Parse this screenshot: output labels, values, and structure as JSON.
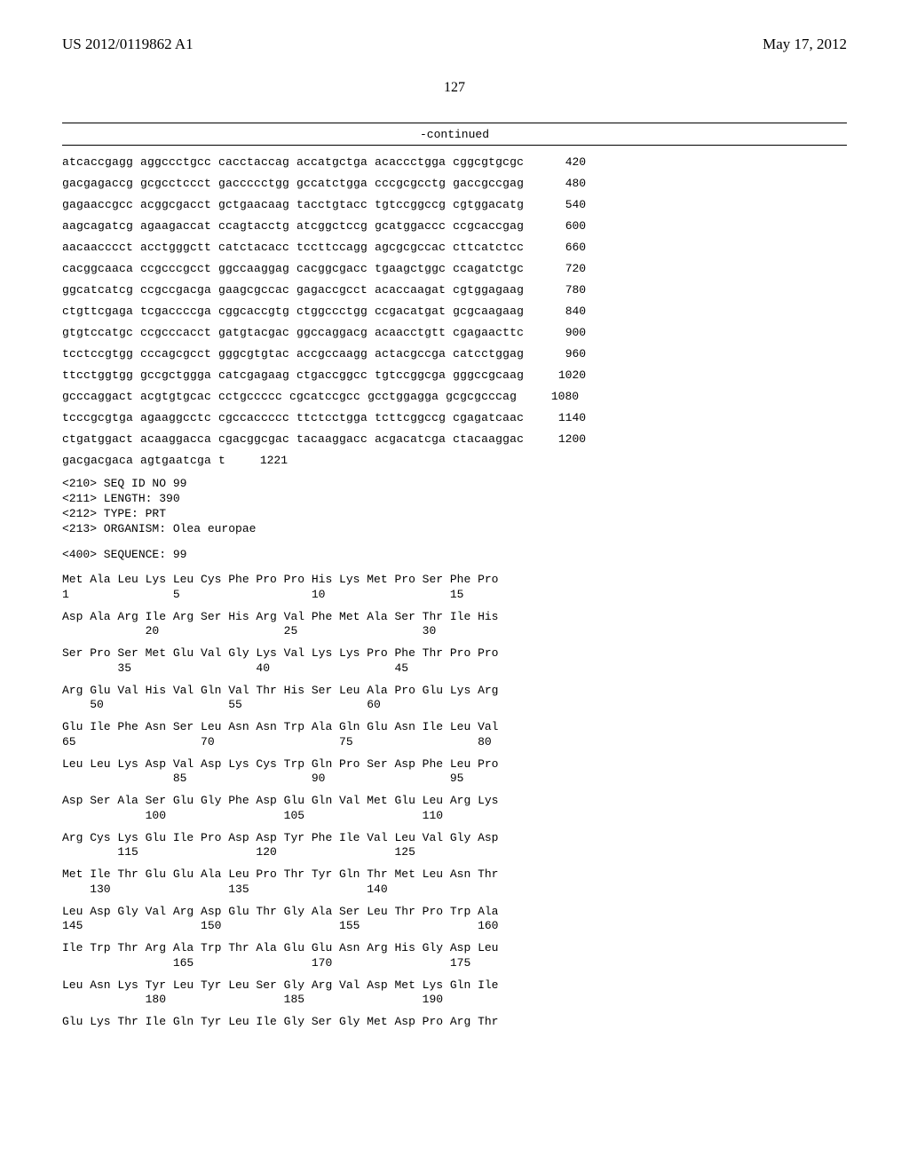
{
  "header": {
    "pub_number": "US 2012/0119862 A1",
    "pub_date": "May 17, 2012"
  },
  "page_number": "127",
  "continued_label": "-continued",
  "dna_rows": [
    {
      "groups": [
        "atcaccgagg",
        "aggccctgcc",
        "cacctaccag",
        "accatgctga",
        "acaccctgga",
        "cggcgtgcgc"
      ],
      "pos": "420"
    },
    {
      "groups": [
        "gacgagaccg",
        "gcgcctccct",
        "gaccccctgg",
        "gccatctgga",
        "cccgcgcctg",
        "gaccgccgag"
      ],
      "pos": "480"
    },
    {
      "groups": [
        "gagaaccgcc",
        "acggcgacct",
        "gctgaacaag",
        "tacctgtacc",
        "tgtccggccg",
        "cgtggacatg"
      ],
      "pos": "540"
    },
    {
      "groups": [
        "aagcagatcg",
        "agaagaccat",
        "ccagtacctg",
        "atcggctccg",
        "gcatggaccc",
        "ccgcaccgag"
      ],
      "pos": "600"
    },
    {
      "groups": [
        "aacaacccct",
        "acctgggctt",
        "catctacacc",
        "tccttccagg",
        "agcgcgccac",
        "cttcatctcc"
      ],
      "pos": "660"
    },
    {
      "groups": [
        "cacggcaaca",
        "ccgcccgcct",
        "ggccaaggag",
        "cacggcgacc",
        "tgaagctggc",
        "ccagatctgc"
      ],
      "pos": "720"
    },
    {
      "groups": [
        "ggcatcatcg",
        "ccgccgacga",
        "gaagcgccac",
        "gagaccgcct",
        "acaccaagat",
        "cgtggagaag"
      ],
      "pos": "780"
    },
    {
      "groups": [
        "ctgttcgaga",
        "tcgaccccga",
        "cggcaccgtg",
        "ctggccctgg",
        "ccgacatgat",
        "gcgcaagaag"
      ],
      "pos": "840"
    },
    {
      "groups": [
        "gtgtccatgc",
        "ccgcccacct",
        "gatgtacgac",
        "ggccaggacg",
        "acaacctgtt",
        "cgagaacttc"
      ],
      "pos": "900"
    },
    {
      "groups": [
        "tcctccgtgg",
        "cccagcgcct",
        "gggcgtgtac",
        "accgccaagg",
        "actacgccga",
        "catcctggag"
      ],
      "pos": "960"
    },
    {
      "groups": [
        "ttcctggtgg",
        "gccgctggga",
        "catcgagaag",
        "ctgaccggcc",
        "tgtccggcga",
        "gggccgcaag"
      ],
      "pos": "1020"
    },
    {
      "groups": [
        "gcccaggact",
        "acgtgtgcac",
        "cctgccccc",
        "cgcatccgcc",
        "gcctggagga",
        "gcgcgcccag"
      ],
      "pos": "1080"
    },
    {
      "groups": [
        "tcccgcgtga",
        "agaaggcctc",
        "cgccaccccc",
        "ttctcctgga",
        "tcttcggccg",
        "cgagatcaac"
      ],
      "pos": "1140"
    },
    {
      "groups": [
        "ctgatggact",
        "acaaggacca",
        "cgacggcgac",
        "tacaaggacc",
        "acgacatcga",
        "ctacaaggac"
      ],
      "pos": "1200"
    },
    {
      "groups": [
        "gacgacgaca",
        "agtgaatcga",
        "t"
      ],
      "pos": "1221"
    }
  ],
  "meta_block": {
    "seq_id": "<210> SEQ ID NO 99",
    "length": "<211> LENGTH: 390",
    "type": "<212> TYPE: PRT",
    "organism": "<213> ORGANISM: Olea europae",
    "sequence_label": "<400> SEQUENCE: 99"
  },
  "protein_rows": [
    {
      "aa": "Met Ala Leu Lys Leu Cys Phe Pro Pro His Lys Met Pro Ser Phe Pro",
      "nums": "1               5                   10                  15"
    },
    {
      "aa": "Asp Ala Arg Ile Arg Ser His Arg Val Phe Met Ala Ser Thr Ile His",
      "nums": "            20                  25                  30"
    },
    {
      "aa": "Ser Pro Ser Met Glu Val Gly Lys Val Lys Lys Pro Phe Thr Pro Pro",
      "nums": "        35                  40                  45"
    },
    {
      "aa": "Arg Glu Val His Val Gln Val Thr His Ser Leu Ala Pro Glu Lys Arg",
      "nums": "    50                  55                  60"
    },
    {
      "aa": "Glu Ile Phe Asn Ser Leu Asn Asn Trp Ala Gln Glu Asn Ile Leu Val",
      "nums": "65                  70                  75                  80"
    },
    {
      "aa": "Leu Leu Lys Asp Val Asp Lys Cys Trp Gln Pro Ser Asp Phe Leu Pro",
      "nums": "                85                  90                  95"
    },
    {
      "aa": "Asp Ser Ala Ser Glu Gly Phe Asp Glu Gln Val Met Glu Leu Arg Lys",
      "nums": "            100                 105                 110"
    },
    {
      "aa": "Arg Cys Lys Glu Ile Pro Asp Asp Tyr Phe Ile Val Leu Val Gly Asp",
      "nums": "        115                 120                 125"
    },
    {
      "aa": "Met Ile Thr Glu Glu Ala Leu Pro Thr Tyr Gln Thr Met Leu Asn Thr",
      "nums": "    130                 135                 140"
    },
    {
      "aa": "Leu Asp Gly Val Arg Asp Glu Thr Gly Ala Ser Leu Thr Pro Trp Ala",
      "nums": "145                 150                 155                 160"
    },
    {
      "aa": "Ile Trp Thr Arg Ala Trp Thr Ala Glu Glu Asn Arg His Gly Asp Leu",
      "nums": "                165                 170                 175"
    },
    {
      "aa": "Leu Asn Lys Tyr Leu Tyr Leu Ser Gly Arg Val Asp Met Lys Gln Ile",
      "nums": "            180                 185                 190"
    },
    {
      "aa": "Glu Lys Thr Ile Gln Tyr Leu Ile Gly Ser Gly Met Asp Pro Arg Thr",
      "nums": ""
    }
  ]
}
